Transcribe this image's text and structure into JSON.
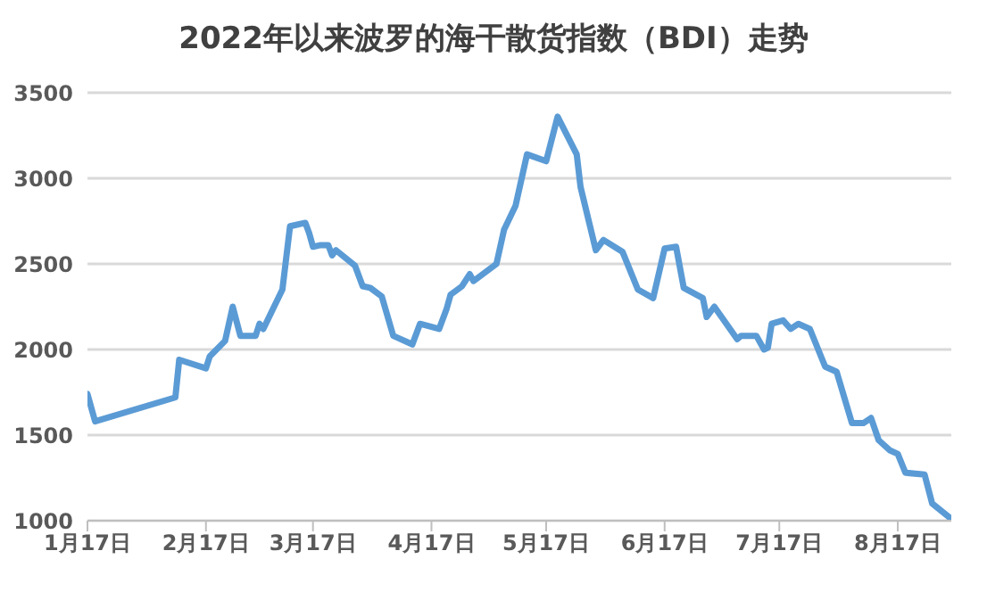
{
  "chart_data": {
    "type": "line",
    "title": "2022年以来波罗的海干散货指数（BDI）走势",
    "x": [
      "2022-01-17",
      "2022-01-19",
      "2022-02-09",
      "2022-02-10",
      "2022-02-17",
      "2022-02-18",
      "2022-02-22",
      "2022-02-24",
      "2022-02-26",
      "2022-03-02",
      "2022-03-03",
      "2022-03-04",
      "2022-03-09",
      "2022-03-11",
      "2022-03-15",
      "2022-03-16",
      "2022-03-17",
      "2022-03-19",
      "2022-03-21",
      "2022-03-22",
      "2022-03-23",
      "2022-03-28",
      "2022-03-30",
      "2022-04-01",
      "2022-04-04",
      "2022-04-07",
      "2022-04-12",
      "2022-04-14",
      "2022-04-19",
      "2022-04-21",
      "2022-04-22",
      "2022-04-25",
      "2022-04-27",
      "2022-04-28",
      "2022-05-04",
      "2022-05-06",
      "2022-05-09",
      "2022-05-12",
      "2022-05-17",
      "2022-05-20",
      "2022-05-25",
      "2022-05-26",
      "2022-05-30",
      "2022-06-01",
      "2022-06-06",
      "2022-06-10",
      "2022-06-14",
      "2022-06-17",
      "2022-06-20",
      "2022-06-22",
      "2022-06-27",
      "2022-06-28",
      "2022-06-30",
      "2022-07-06",
      "2022-07-07",
      "2022-07-11",
      "2022-07-13",
      "2022-07-14",
      "2022-07-15",
      "2022-07-18",
      "2022-07-20",
      "2022-07-22",
      "2022-07-25",
      "2022-07-29",
      "2022-08-01",
      "2022-08-05",
      "2022-08-08",
      "2022-08-10",
      "2022-08-12",
      "2022-08-15",
      "2022-08-17",
      "2022-08-19",
      "2022-08-24",
      "2022-08-26",
      "2022-08-31"
    ],
    "series": [
      {
        "color": "#5b9bd5",
        "values": [
          1740,
          1580,
          1720,
          1940,
          1890,
          1960,
          2050,
          2250,
          2080,
          2080,
          2150,
          2120,
          2350,
          2720,
          2740,
          2680,
          2600,
          2610,
          2610,
          2550,
          2580,
          2490,
          2370,
          2360,
          2310,
          2080,
          2030,
          2150,
          2120,
          2240,
          2320,
          2370,
          2440,
          2400,
          2500,
          2700,
          2840,
          3140,
          3100,
          3360,
          3140,
          2950,
          2580,
          2640,
          2570,
          2350,
          2300,
          2590,
          2600,
          2360,
          2300,
          2190,
          2250,
          2060,
          2080,
          2080,
          2000,
          2010,
          2150,
          2170,
          2120,
          2150,
          2120,
          1900,
          1870,
          1570,
          1570,
          1600,
          1470,
          1410,
          1390,
          1280,
          1270,
          1100,
          1010
        ]
      }
    ],
    "xlim": [
      "2022-01-17",
      "2022-08-31"
    ],
    "xticks": [
      {
        "value": "2022-01-17",
        "label": "1月17日"
      },
      {
        "value": "2022-02-17",
        "label": "2月17日"
      },
      {
        "value": "2022-03-17",
        "label": "3月17日"
      },
      {
        "value": "2022-04-17",
        "label": "4月17日"
      },
      {
        "value": "2022-05-17",
        "label": "5月17日"
      },
      {
        "value": "2022-06-17",
        "label": "6月17日"
      },
      {
        "value": "2022-07-17",
        "label": "7月17日"
      },
      {
        "value": "2022-08-17",
        "label": "8月17日"
      }
    ],
    "ylim": [
      1000,
      3500
    ],
    "yticks": [
      1000,
      1500,
      2000,
      2500,
      3000,
      3500
    ],
    "grid": "y",
    "legend": false,
    "marker": "none",
    "line_style": "solid"
  }
}
